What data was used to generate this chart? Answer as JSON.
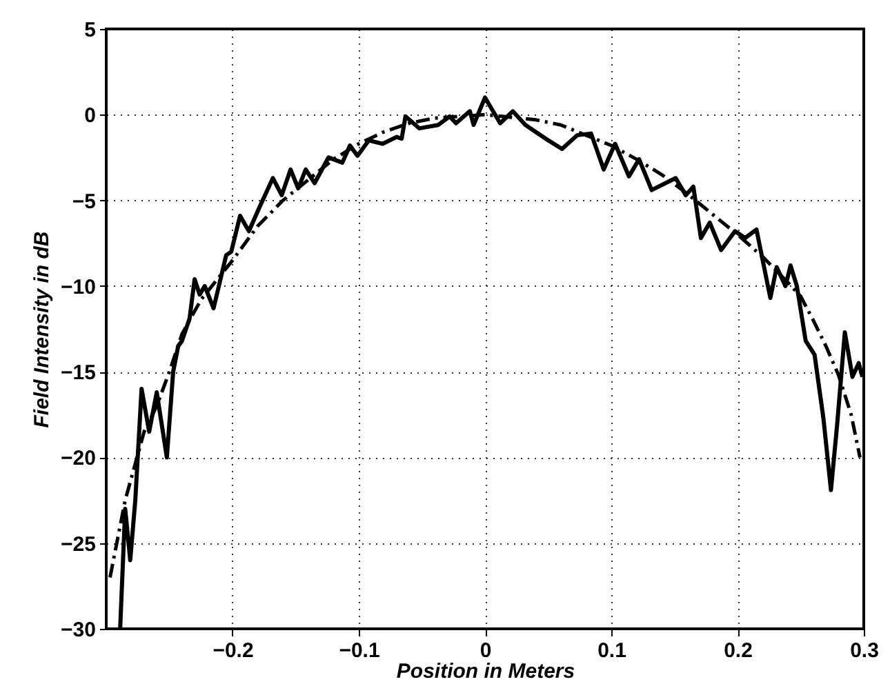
{
  "chart_data": {
    "type": "line",
    "xlabel": "Position in Meters",
    "ylabel": "Field Intensity in dB",
    "xlim": [
      -0.3,
      0.3
    ],
    "xticks": [
      -0.2,
      -0.1,
      0,
      0.1,
      0.2,
      0.3
    ],
    "ylim": [
      -30,
      5
    ],
    "yticks": [
      -30,
      -25,
      -20,
      -15,
      -10,
      -5,
      0,
      5
    ],
    "grid": true,
    "marker": "none",
    "series": [
      {
        "color": "#000000",
        "line_style": "solid",
        "x": [
          -0.289,
          -0.285,
          -0.281,
          -0.277,
          -0.272,
          -0.266,
          -0.26,
          -0.252,
          -0.247,
          -0.243,
          -0.24,
          -0.234,
          -0.23,
          -0.226,
          -0.222,
          -0.215,
          -0.205,
          -0.201,
          -0.194,
          -0.187,
          -0.178,
          -0.168,
          -0.161,
          -0.154,
          -0.148,
          -0.142,
          -0.135,
          -0.124,
          -0.113,
          -0.107,
          -0.101,
          -0.092,
          -0.081,
          -0.07,
          -0.066,
          -0.063,
          -0.052,
          -0.037,
          -0.028,
          -0.023,
          -0.012,
          -0.009,
          0,
          0.012,
          0.022,
          0.032,
          0.048,
          0.061,
          0.073,
          0.084,
          0.094,
          0.103,
          0.114,
          0.122,
          0.132,
          0.151,
          0.159,
          0.165,
          0.171,
          0.178,
          0.187,
          0.198,
          0.206,
          0.215,
          0.226,
          0.231,
          0.238,
          0.242,
          0.247,
          0.254,
          0.261,
          0.268,
          0.274,
          0.279,
          0.285,
          0.291,
          0.296,
          0.299
        ],
        "values": [
          -30,
          -23,
          -26,
          -22.5,
          -16,
          -18.5,
          -16.2,
          -20,
          -15,
          -13.5,
          -13.2,
          -11.9,
          -9.6,
          -10.5,
          -10,
          -11.3,
          -8.2,
          -8,
          -5.9,
          -6.8,
          -5.3,
          -3.7,
          -4.7,
          -3.2,
          -4.3,
          -3.2,
          -4,
          -2.5,
          -2.8,
          -1.8,
          -2.4,
          -1.5,
          -1.7,
          -1.3,
          -1.4,
          -0.1,
          -0.8,
          -0.6,
          -0.1,
          -0.5,
          0.2,
          -0.6,
          1,
          -0.5,
          0.2,
          -0.6,
          -1.4,
          -2,
          -1.2,
          -1.1,
          -3.2,
          -1.7,
          -3.6,
          -2.6,
          -4.4,
          -3.7,
          -4.7,
          -4.2,
          -7.2,
          -6.3,
          -7.9,
          -6.8,
          -7.2,
          -6.7,
          -10.7,
          -8.9,
          -10,
          -8.8,
          -10,
          -13.2,
          -14,
          -17.7,
          -21.9,
          -18,
          -12.7,
          -15.3,
          -14.5,
          -15.3
        ]
      },
      {
        "color": "#000000",
        "line_style": "dashed",
        "x": [
          -0.297,
          -0.285,
          -0.27,
          -0.26,
          -0.25,
          -0.24,
          -0.225,
          -0.2,
          -0.18,
          -0.16,
          -0.14,
          -0.12,
          -0.1,
          -0.08,
          -0.06,
          -0.04,
          0,
          0.04,
          0.06,
          0.08,
          0.1,
          0.12,
          0.14,
          0.16,
          0.18,
          0.2,
          0.22,
          0.24,
          0.25,
          0.26,
          0.27,
          0.28,
          0.29,
          0.297
        ],
        "values": [
          -27,
          -22.5,
          -18.5,
          -17,
          -15,
          -12.8,
          -10.8,
          -8.5,
          -6.5,
          -5,
          -3.8,
          -2.6,
          -1.7,
          -1,
          -0.5,
          -0.2,
          0,
          -0.3,
          -0.6,
          -1.2,
          -1.8,
          -2.6,
          -3.5,
          -4.6,
          -5.8,
          -7,
          -8.3,
          -9.8,
          -10.6,
          -12,
          -13.5,
          -15.2,
          -17.5,
          -20
        ]
      }
    ]
  }
}
